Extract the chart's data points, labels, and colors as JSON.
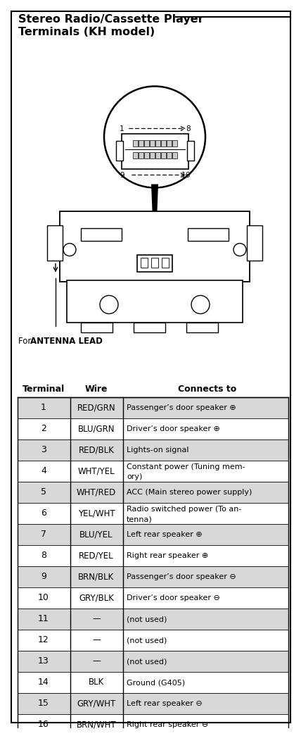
{
  "title_line1": "Stereo Radio/Cassette Player",
  "title_line2": "Terminals (KH model)",
  "antenna_label_normal": "For ",
  "antenna_label_bold": "ANTENNA LEAD",
  "table_headers": [
    "Terminal",
    "Wire",
    "Connects to"
  ],
  "rows": [
    [
      "1",
      "RED/GRN",
      "Passenger’s door speaker ⊕"
    ],
    [
      "2",
      "BLU/GRN",
      "Driver’s door speaker ⊕"
    ],
    [
      "3",
      "RED/BLK",
      "Lights-on signal"
    ],
    [
      "4",
      "WHT/YEL",
      "Constant power (Tuning mem-\nory)"
    ],
    [
      "5",
      "WHT/RED",
      "ACC (Main stereo power supply)"
    ],
    [
      "6",
      "YEL/WHT",
      "Radio switched power (To an-\ntenna)"
    ],
    [
      "7",
      "BLU/YEL",
      "Left rear speaker ⊕"
    ],
    [
      "8",
      "RED/YEL",
      "Right rear speaker ⊕"
    ],
    [
      "9",
      "BRN/BLK",
      "Passenger’s door speaker ⊖"
    ],
    [
      "10",
      "GRY/BLK",
      "Driver’s door speaker ⊖"
    ],
    [
      "11",
      "—",
      "(not used)"
    ],
    [
      "12",
      "—",
      "(not used)"
    ],
    [
      "13",
      "—",
      "(not used)"
    ],
    [
      "14",
      "BLK",
      "Ground (G405)"
    ],
    [
      "15",
      "GRY/WHT",
      "Left rear speaker ⊖"
    ],
    [
      "16",
      "BRN/WHT",
      "Right rear speaker ⊖"
    ]
  ],
  "bg_color": "#ffffff",
  "border_color": "#000000",
  "text_color": "#000000",
  "row_shade_color": "#d8d8d8"
}
